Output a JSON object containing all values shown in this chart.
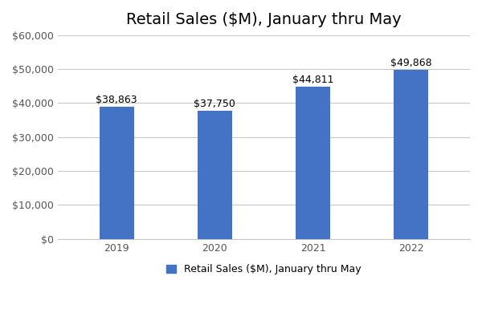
{
  "title": "Retail Sales ($M), January thru May",
  "categories": [
    "2019",
    "2020",
    "2021",
    "2022"
  ],
  "values": [
    38863,
    37750,
    44811,
    49868
  ],
  "labels": [
    "$38,863",
    "$37,750",
    "$44,811",
    "$49,868"
  ],
  "bar_color": "#4472C4",
  "legend_label": "Retail Sales ($M), January thru May",
  "ylim": [
    0,
    60000
  ],
  "yticks": [
    0,
    10000,
    20000,
    30000,
    40000,
    50000,
    60000
  ],
  "ytick_labels": [
    "$0",
    "$10,000",
    "$20,000",
    "$30,000",
    "$40,000",
    "$50,000",
    "$60,000"
  ],
  "background_color": "#ffffff",
  "grid_color": "#c8c8c8",
  "title_fontsize": 14,
  "label_fontsize": 9,
  "tick_fontsize": 9,
  "legend_fontsize": 9,
  "bar_width": 0.35
}
